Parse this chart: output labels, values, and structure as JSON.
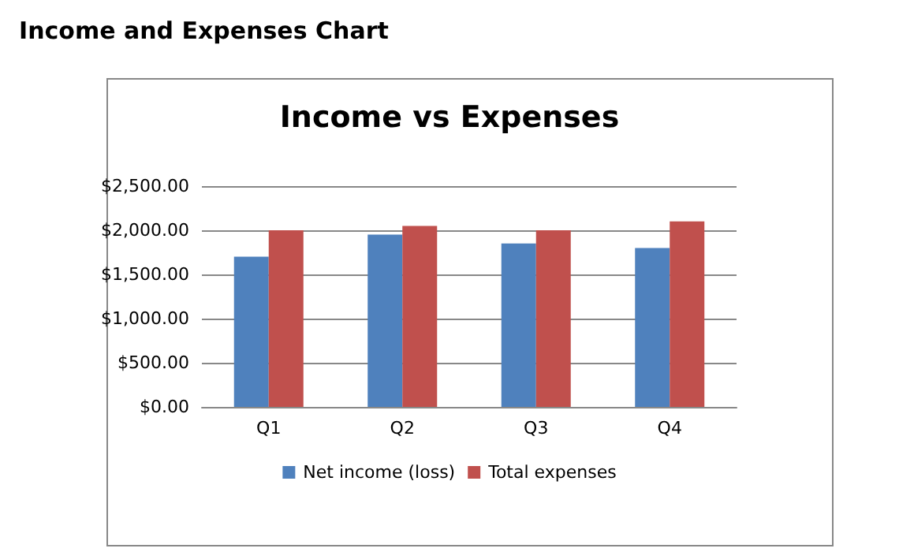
{
  "chart_data": {
    "type": "bar",
    "title": "Income vs Expenses",
    "annotations": [
      "Income and Expenses Chart"
    ],
    "categories": [
      "Q1",
      "Q2",
      "Q3",
      "Q4"
    ],
    "series": [
      {
        "name": "Net income (loss)",
        "color": "#4f81bd",
        "values": [
          1700,
          1950,
          1850,
          1800
        ]
      },
      {
        "name": "Total expenses",
        "color": "#c0504d",
        "values": [
          2000,
          2050,
          2000,
          2100
        ]
      }
    ],
    "ylim": [
      0,
      2500
    ],
    "yticks": [
      {
        "value": 0,
        "label": "$0.00"
      },
      {
        "value": 500,
        "label": "$500.00"
      },
      {
        "value": 1000,
        "label": "$1,000.00"
      },
      {
        "value": 1500,
        "label": "$1,500.00"
      },
      {
        "value": 2000,
        "label": "$2,000.00"
      },
      {
        "value": 2500,
        "label": "$2,500.00"
      }
    ],
    "grid": "y",
    "legend": "bottom"
  }
}
